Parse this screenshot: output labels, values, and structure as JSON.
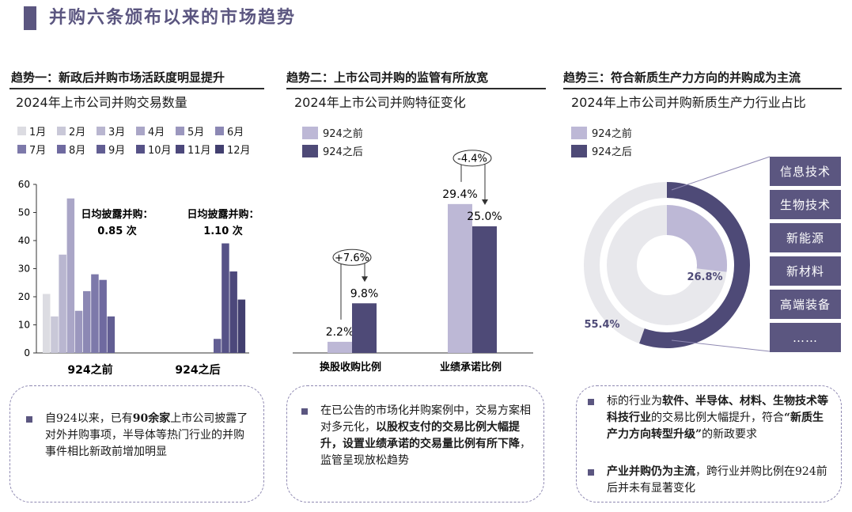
{
  "page": {
    "title": "并购六条颁布以来的市场趋势"
  },
  "columns": [
    {
      "heading": "趋势一：新政后并购市场活跃度明显提升",
      "subtitle": "2024年上市公司并购交易数量"
    },
    {
      "heading": "趋势二：上市公司并购的监管有所放宽",
      "subtitle": "2024年上市公司并购特征变化"
    },
    {
      "heading": "趋势三：符合新质生产力方向的并购成为主流",
      "subtitle": "2024年上市公司并购新质生产力行业占比"
    }
  ],
  "colors": {
    "accent": "#5b5680",
    "before": "#bdb8d6",
    "after": "#4e4a77",
    "donut_bg": "#e8e8ec",
    "months": [
      "#dcdce2",
      "#c9c8d8",
      "#b9b6d0",
      "#aaa6c7",
      "#9b97be",
      "#8c88b4",
      "#7d79aa",
      "#6f6aa0",
      "#625e93",
      "#565287",
      "#4c487b",
      "#423f6f"
    ]
  },
  "chart_data": [
    {
      "type": "bar",
      "title": "2024年上市公司并购交易数量",
      "legend": [
        "1月",
        "2月",
        "3月",
        "4月",
        "5月",
        "6月",
        "7月",
        "8月",
        "9月",
        "10月",
        "11月",
        "12月"
      ],
      "categories": [
        "924之前",
        "924之后"
      ],
      "series": [
        {
          "name": "1月",
          "values": [
            21,
            null
          ]
        },
        {
          "name": "2月",
          "values": [
            13,
            null
          ]
        },
        {
          "name": "3月",
          "values": [
            35,
            null
          ]
        },
        {
          "name": "4月",
          "values": [
            55,
            null
          ]
        },
        {
          "name": "5月",
          "values": [
            15,
            null
          ]
        },
        {
          "name": "6月",
          "values": [
            22,
            null
          ]
        },
        {
          "name": "7月",
          "values": [
            28,
            null
          ]
        },
        {
          "name": "8月",
          "values": [
            26,
            null
          ]
        },
        {
          "name": "9月",
          "values": [
            13,
            5
          ]
        },
        {
          "name": "10月",
          "values": [
            null,
            39
          ]
        },
        {
          "name": "11月",
          "values": [
            null,
            29
          ]
        },
        {
          "name": "12月",
          "values": [
            null,
            19
          ]
        }
      ],
      "ylim": [
        0,
        60
      ],
      "yticks": [
        "0",
        "10",
        "20",
        "30",
        "40",
        "50",
        "60"
      ],
      "annotations": [
        {
          "label": "日均披露并购：",
          "value": "0.85 次"
        },
        {
          "label": "日均披露并购：",
          "value": "1.10 次"
        }
      ]
    },
    {
      "type": "bar",
      "title": "2024年上市公司并购特征变化",
      "legend": [
        "924之前",
        "924之后"
      ],
      "categories": [
        "换股收购比例",
        "业绩承诺比例"
      ],
      "series": [
        {
          "name": "924之前",
          "values": [
            2.2,
            29.4
          ],
          "labels": [
            "2.2%",
            "29.4%"
          ]
        },
        {
          "name": "924之后",
          "values": [
            9.8,
            25.0
          ],
          "labels": [
            "9.8%",
            "25.0%"
          ]
        }
      ],
      "changes": [
        "+7.6%",
        "-4.4%"
      ]
    },
    {
      "type": "pie",
      "title": "2024年上市公司并购新质生产力行业占比",
      "legend": [
        "924之前",
        "924之后"
      ],
      "series": [
        {
          "name": "924之前",
          "value": 26.8,
          "label": "26.8%"
        },
        {
          "name": "924之后",
          "value": 55.4,
          "label": "55.4%"
        }
      ],
      "industries": [
        "信息技术",
        "生物技术",
        "新能源",
        "新材料",
        "高端装备",
        "……"
      ]
    }
  ],
  "notes": [
    {
      "parts": [
        [
          "自924以来，已有",
          false
        ],
        [
          "90余家",
          true
        ],
        [
          "上市公司披露了对外并购事项，半导体等热门行业的并购事件相比新政前增加明显",
          false
        ]
      ]
    },
    {
      "parts": [
        [
          "在已公告的市场化并购案例中，交易方案相对多元化，",
          false
        ],
        [
          "以股权支付的交易比例大幅提升，设置业绩承诺的交易量比例有所下降",
          true
        ],
        [
          "，监管呈现放松趋势",
          false
        ]
      ]
    },
    {
      "parts": [
        [
          "标的行业为",
          false
        ],
        [
          "软件、半导体、材料、生物技术等科技行业",
          true
        ],
        [
          "的交易比例大幅提升，符合",
          false
        ],
        [
          "“新质生产力方向转型升级”",
          true
        ],
        [
          "的新政要求",
          false
        ]
      ]
    },
    {
      "parts": [
        [
          "产业并购仍为主流",
          true
        ],
        [
          "，跨行业并购比例在924前后并未有显著变化",
          false
        ]
      ]
    }
  ]
}
